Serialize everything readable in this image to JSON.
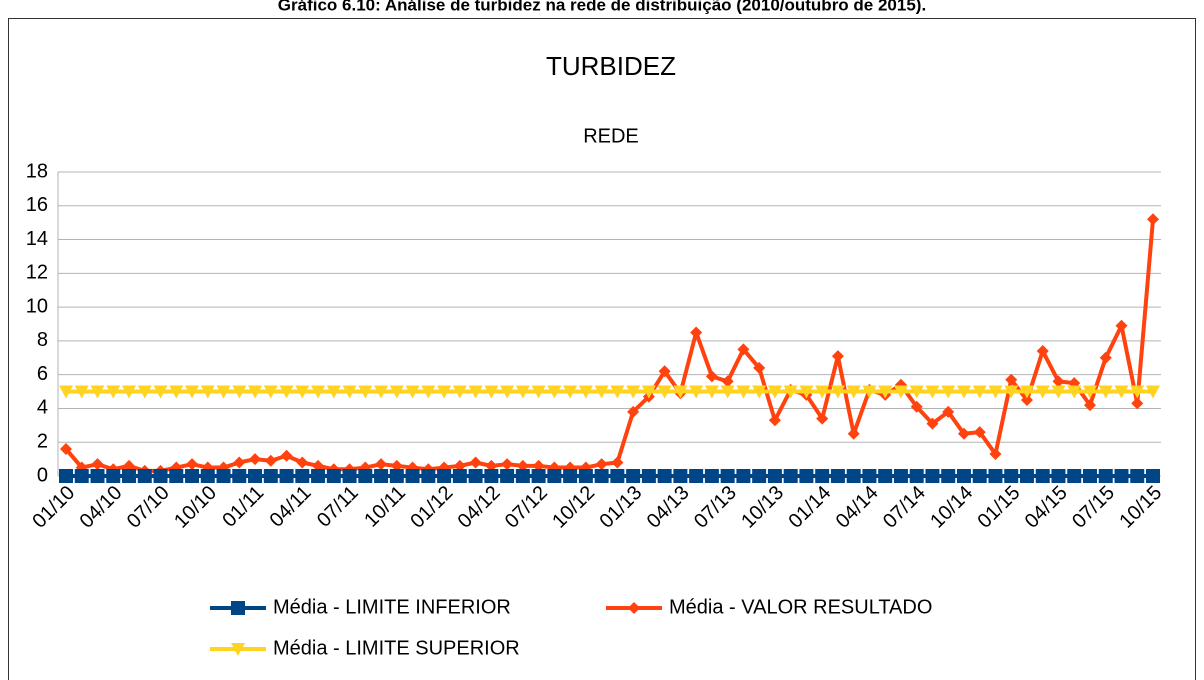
{
  "chart_data": {
    "type": "line",
    "caption": "Gráfico 6.10: Análise de turbidez na rede de distribuição (2010/outubro de 2015).",
    "title": "TURBIDEZ",
    "subtitle": "REDE",
    "categories": [
      "01/10",
      null,
      null,
      "04/10",
      null,
      null,
      "07/10",
      null,
      null,
      "10/10",
      null,
      null,
      "01/11",
      null,
      null,
      "04/11",
      null,
      null,
      "07/11",
      null,
      null,
      "10/11",
      null,
      null,
      "01/12",
      null,
      null,
      "04/12",
      null,
      null,
      "07/12",
      null,
      null,
      "10/12",
      null,
      null,
      "01/13",
      null,
      null,
      "04/13",
      null,
      null,
      "07/13",
      null,
      null,
      "10/13",
      null,
      null,
      "01/14",
      null,
      null,
      "04/14",
      null,
      null,
      "07/14",
      null,
      null,
      "10/14",
      null,
      null,
      "01/15",
      null,
      null,
      "04/15",
      null,
      null,
      "07/15",
      null,
      null,
      "10/15"
    ],
    "ylim": [
      0,
      18
    ],
    "yticks": [
      0,
      2,
      4,
      6,
      8,
      10,
      12,
      14,
      16,
      18
    ],
    "grid": true,
    "legend": "bottom",
    "series": [
      {
        "name": "Média - LIMITE INFERIOR",
        "color": "#004586",
        "marker": "square",
        "values": [
          0,
          0,
          0,
          0,
          0,
          0,
          0,
          0,
          0,
          0,
          0,
          0,
          0,
          0,
          0,
          0,
          0,
          0,
          0,
          0,
          0,
          0,
          0,
          0,
          0,
          0,
          0,
          0,
          0,
          0,
          0,
          0,
          0,
          0,
          0,
          0,
          0,
          0,
          0,
          0,
          0,
          0,
          0,
          0,
          0,
          0,
          0,
          0,
          0,
          0,
          0,
          0,
          0,
          0,
          0,
          0,
          0,
          0,
          0,
          0,
          0,
          0,
          0,
          0,
          0,
          0,
          0,
          0,
          0,
          0
        ]
      },
      {
        "name": "Média - VALOR RESULTADO",
        "color": "#ff420e",
        "marker": "diamond",
        "values": [
          1.6,
          0.5,
          0.7,
          0.4,
          0.6,
          0.3,
          0.3,
          0.5,
          0.7,
          0.5,
          0.5,
          0.8,
          1.0,
          0.9,
          1.2,
          0.8,
          0.6,
          0.4,
          0.4,
          0.5,
          0.7,
          0.6,
          0.5,
          0.4,
          0.5,
          0.6,
          0.8,
          0.6,
          0.7,
          0.6,
          0.6,
          0.5,
          0.5,
          0.5,
          0.7,
          0.8,
          3.8,
          4.7,
          6.2,
          4.9,
          8.5,
          5.9,
          5.6,
          7.5,
          6.4,
          3.3,
          5.1,
          4.8,
          3.4,
          7.1,
          2.5,
          5.1,
          4.8,
          5.4,
          4.1,
          3.1,
          3.8,
          2.5,
          2.6,
          1.3,
          5.7,
          4.5,
          7.4,
          5.6,
          5.5,
          4.2,
          7.0,
          8.9,
          4.3,
          15.2
        ]
      },
      {
        "name": "Média - LIMITE SUPERIOR",
        "color": "#ffd320",
        "marker": "triangle-down",
        "values": [
          5,
          5,
          5,
          5,
          5,
          5,
          5,
          5,
          5,
          5,
          5,
          5,
          5,
          5,
          5,
          5,
          5,
          5,
          5,
          5,
          5,
          5,
          5,
          5,
          5,
          5,
          5,
          5,
          5,
          5,
          5,
          5,
          5,
          5,
          5,
          5,
          5,
          5,
          5,
          5,
          5,
          5,
          5,
          5,
          5,
          5,
          5,
          5,
          5,
          5,
          5,
          5,
          5,
          5,
          5,
          5,
          5,
          5,
          5,
          5,
          5,
          5,
          5,
          5,
          5,
          5,
          5,
          5,
          5,
          5
        ]
      }
    ]
  }
}
